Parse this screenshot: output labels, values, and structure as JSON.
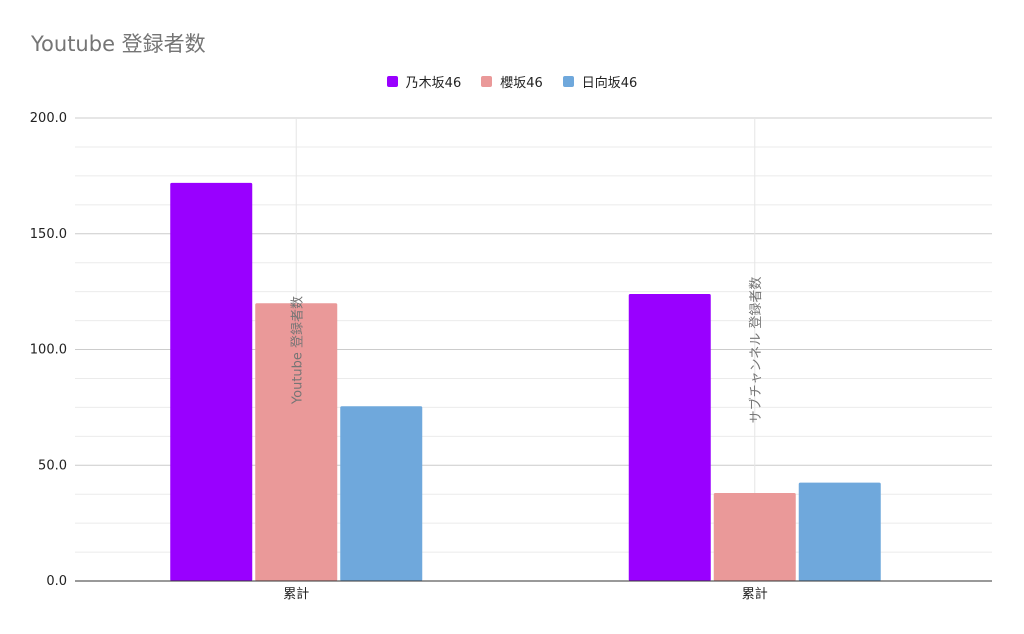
{
  "chart_data": {
    "type": "bar",
    "title": "Youtube 登録者数",
    "categories": [
      "累計",
      "累計"
    ],
    "series": [
      {
        "name": "乃木坂46",
        "color": "#9900ff",
        "values": [
          172,
          124
        ]
      },
      {
        "name": "櫻坂46",
        "color": "#ea9999",
        "values": [
          120,
          38
        ]
      },
      {
        "name": "日向坂46",
        "color": "#6fa8dc",
        "values": [
          75.5,
          42.5
        ]
      }
    ],
    "ylim": [
      0,
      200
    ],
    "y_ticks": [
      "0.0",
      "50.0",
      "100.0",
      "150.0",
      "200.0"
    ],
    "y_tick_values": [
      0,
      50,
      100,
      150,
      200
    ],
    "annotations": [
      "Youtube 登録者数",
      "サブチャンネル 登録者数"
    ],
    "legend_position": "top-center",
    "grid": true
  }
}
